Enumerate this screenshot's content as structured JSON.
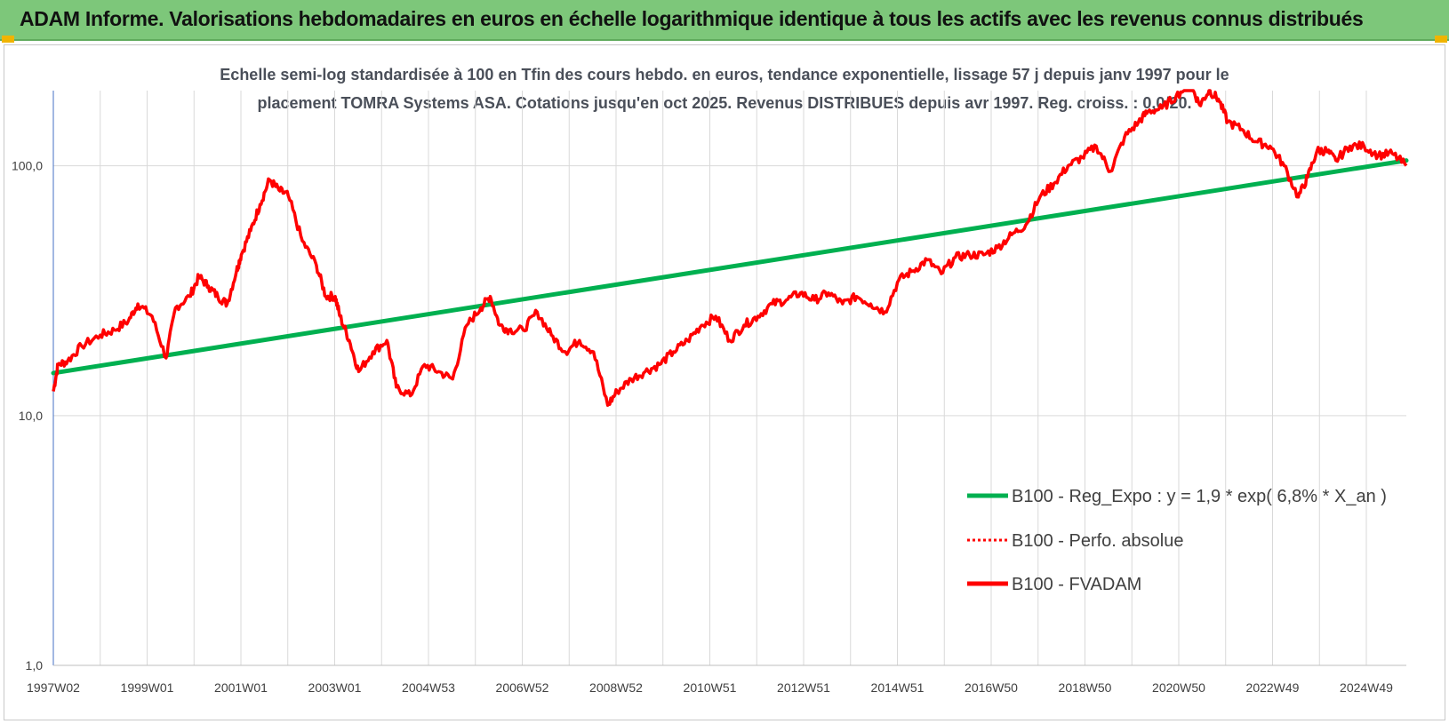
{
  "header": {
    "title": "ADAM Informe. Valorisations hebdomadaires en euros en échelle logarithmique identique à tous les actifs avec les revenus connus distribués"
  },
  "colors": {
    "header_bg": "#7dc77a",
    "trend": "#00b050",
    "fvadam": "#ff0000",
    "grid": "#d9d9d9",
    "corner": "#f0b400"
  },
  "chart_data": {
    "type": "line",
    "subtitle_line1": "Echelle semi-log standardisée à 100 en Tfin des cours hebdo. en euros, tendance exponentielle, lissage 57 j depuis janv 1997 pour le",
    "subtitle_line2": "placement TOMRA Systems ASA. Cotations jusqu'en oct 2025. Revenus DISTRIBUES depuis avr 1997. Reg. croiss. : 0,0/20.",
    "y_scale": "log",
    "ylim": [
      1,
      200
    ],
    "y_ticks": [
      "1,0",
      "10,0",
      "100,0"
    ],
    "y_tick_values": [
      1,
      10,
      100
    ],
    "x_tick_labels": [
      "1997W02",
      "1999W01",
      "2001W01",
      "2003W01",
      "2004W53",
      "2006W52",
      "2008W52",
      "2010W51",
      "2012W51",
      "2014W51",
      "2016W50",
      "2018W50",
      "2020W50",
      "2022W49",
      "2024W49"
    ],
    "x_range": [
      1997.0,
      2025.8
    ],
    "grid": "vertical and horizontal",
    "legend_position": "bottom-right",
    "legend": [
      {
        "label": "B100 - Reg_Expo : y = 1,9 * exp( 6,8% *  X_an )",
        "style": "solid",
        "color": "#00b050"
      },
      {
        "label": "B100 - Perfo. absolue",
        "style": "dotted",
        "color": "#ff0000"
      },
      {
        "label": "B100 - FVADAM",
        "style": "solid",
        "color": "#ff0000"
      }
    ],
    "series": [
      {
        "name": "B100 - Reg_Expo : y = 1,9 * exp( 6,8% *  X_an )",
        "x": [
          1997.0,
          2025.8
        ],
        "y": [
          14.8,
          105
        ]
      },
      {
        "name": "B100 - FVADAM",
        "x": [
          1997.0,
          1997.1,
          1997.3,
          1997.6,
          1998.0,
          1998.3,
          1998.6,
          1998.8,
          1999.1,
          1999.4,
          1999.6,
          1999.9,
          2000.1,
          2000.3,
          2000.5,
          2000.7,
          2000.9,
          2001.0,
          2001.2,
          2001.4,
          2001.6,
          2001.8,
          2002.0,
          2002.3,
          2002.6,
          2002.8,
          2003.0,
          2003.1,
          2003.3,
          2003.5,
          2003.8,
          2004.1,
          2004.3,
          2004.6,
          2004.9,
          2005.2,
          2005.5,
          2005.8,
          2006.1,
          2006.3,
          2006.5,
          2006.7,
          2007.0,
          2007.3,
          2007.6,
          2007.9,
          2008.2,
          2008.5,
          2008.8,
          2009.0,
          2009.3,
          2009.6,
          2009.9,
          2010.2,
          2010.5,
          2010.8,
          2011.1,
          2011.4,
          2011.7,
          2012.0,
          2012.3,
          2012.6,
          2012.9,
          2013.2,
          2013.5,
          2013.8,
          2014.1,
          2014.4,
          2014.7,
          2015.0,
          2015.3,
          2015.6,
          2015.9,
          2016.2,
          2016.5,
          2016.8,
          2017.1,
          2017.4,
          2017.7,
          2018.0,
          2018.3,
          2018.6,
          2018.9,
          2019.2,
          2019.5,
          2019.8,
          2020.1,
          2020.3,
          2020.6,
          2020.9,
          2021.2,
          2021.4,
          2021.6,
          2021.8,
          2022.0,
          2022.3,
          2022.6,
          2022.9,
          2023.2,
          2023.5,
          2023.7,
          2023.9,
          2024.1,
          2024.3,
          2024.6,
          2024.9,
          2025.2,
          2025.5,
          2025.8
        ],
        "y": [
          12.5,
          16,
          16.5,
          19,
          21,
          22,
          24,
          28,
          25,
          17,
          27,
          30,
          36,
          33,
          30,
          28,
          38,
          44,
          55,
          70,
          88,
          80,
          76,
          50,
          40,
          30,
          30,
          25,
          20,
          15,
          18,
          20,
          13,
          12,
          16,
          15,
          14,
          23,
          27,
          30,
          23,
          22,
          22,
          26,
          21,
          18,
          20,
          18,
          11,
          12.5,
          14,
          15,
          16,
          18,
          20,
          23,
          25,
          20,
          23,
          25,
          28,
          29,
          31,
          29,
          31,
          28,
          30,
          28,
          26,
          35,
          38,
          42,
          37,
          43,
          44,
          44,
          47,
          53,
          58,
          75,
          85,
          100,
          108,
          120,
          95,
          130,
          150,
          165,
          170,
          190,
          215,
          175,
          200,
          185,
          150,
          140,
          125,
          120,
          100,
          75,
          90,
          115,
          115,
          105,
          120,
          120,
          110,
          112,
          100
        ]
      }
    ]
  }
}
